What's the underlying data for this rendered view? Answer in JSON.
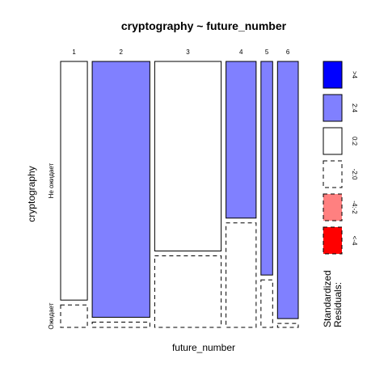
{
  "chart_data": {
    "type": "mosaic",
    "title": "cryptography ~ future_number",
    "xlabel": "future_number",
    "ylabel": "cryptography",
    "x_categories": [
      "1",
      "2",
      "3",
      "4",
      "5",
      "6"
    ],
    "y_categories": [
      "Не ожидает",
      "Ожидает"
    ],
    "column_fractions": [
      0.103,
      0.222,
      0.256,
      0.116,
      0.045,
      0.08
    ],
    "cells": [
      {
        "x": "1",
        "y": "Не ожидает",
        "fraction": 0.914,
        "residual_class": "0:2"
      },
      {
        "x": "1",
        "y": "Ожидает",
        "fraction": 0.086,
        "residual_class": "-2:0"
      },
      {
        "x": "2",
        "y": "Не ожидает",
        "fraction": 0.98,
        "residual_class": "2:4"
      },
      {
        "x": "2",
        "y": "Ожидает",
        "fraction": 0.02,
        "residual_class": "-2:0"
      },
      {
        "x": "3",
        "y": "Не ожидает",
        "fraction": 0.726,
        "residual_class": "0:2"
      },
      {
        "x": "3",
        "y": "Ожидает",
        "fraction": 0.274,
        "residual_class": "-2:0"
      },
      {
        "x": "4",
        "y": "Не ожидает",
        "fraction": 0.6,
        "residual_class": "2:4"
      },
      {
        "x": "4",
        "y": "Ожидает",
        "fraction": 0.4,
        "residual_class": "-2:0"
      },
      {
        "x": "5",
        "y": "Не ожидает",
        "fraction": 0.818,
        "residual_class": "2:4"
      },
      {
        "x": "5",
        "y": "Ожидает",
        "fraction": 0.182,
        "residual_class": "-2:0"
      },
      {
        "x": "6",
        "y": "Не ожидает",
        "fraction": 0.985,
        "residual_class": "2:4"
      },
      {
        "x": "6",
        "y": "Ожидает",
        "fraction": 0.015,
        "residual_class": "-2:0"
      }
    ],
    "legend": {
      "title_lines": [
        "Standardized",
        "Residuals:"
      ],
      "placement": "right",
      "entries": [
        {
          "label": ">4",
          "fill": "#0000ff",
          "border": "solid"
        },
        {
          "label": "2:4",
          "fill": "#8080ff",
          "border": "solid"
        },
        {
          "label": "0:2",
          "fill": "#ffffff",
          "border": "solid"
        },
        {
          "label": "-2:0",
          "fill": "#ffffff",
          "border": "dashed"
        },
        {
          "label": "-4:-2",
          "fill": "#ff8080",
          "border": "dashed"
        },
        {
          "label": "<-4",
          "fill": "#ff0000",
          "border": "dashed"
        }
      ]
    }
  }
}
